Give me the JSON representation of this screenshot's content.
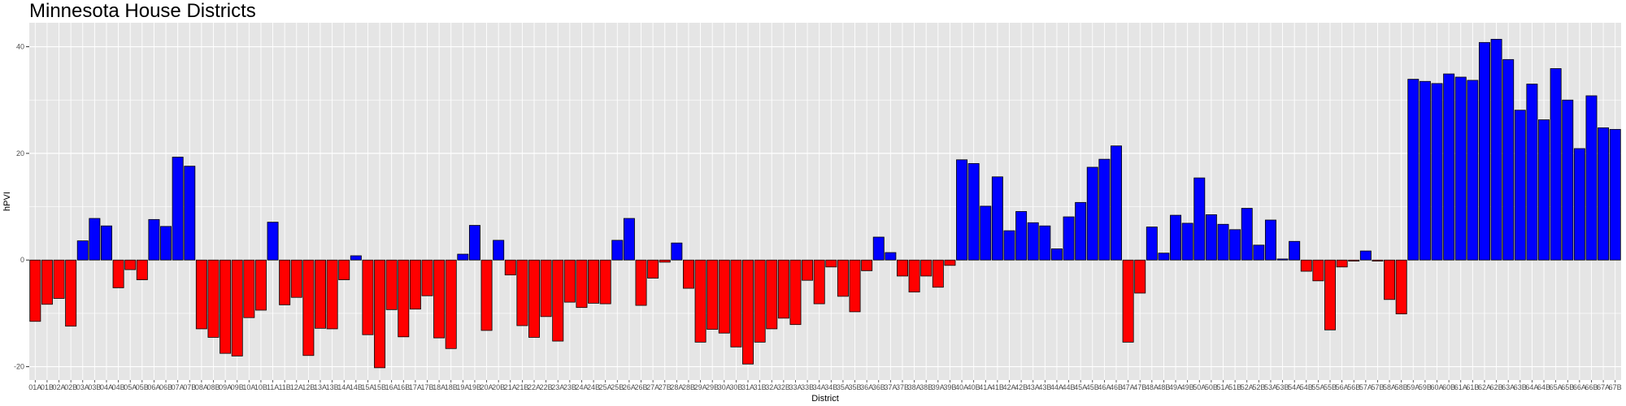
{
  "chart_data": {
    "type": "bar",
    "title": "Minnesota House Districts",
    "xlabel": "District",
    "ylabel": "hPVI",
    "ylim": [
      -22.5,
      44.5
    ],
    "yticks": [
      -20,
      0,
      20,
      40
    ],
    "grid": true,
    "colors": {
      "positive": "#0000ff",
      "negative": "#ff0000",
      "panel": "#e5e5e5",
      "grid": "#ffffff"
    },
    "categories": [
      "01A",
      "01B",
      "02A",
      "02B",
      "03A",
      "03B",
      "04A",
      "04B",
      "05A",
      "05B",
      "06A",
      "06B",
      "07A",
      "07B",
      "08A",
      "08B",
      "09A",
      "09B",
      "10A",
      "10B",
      "11A",
      "11B",
      "12A",
      "12B",
      "13A",
      "13B",
      "14A",
      "14B",
      "15A",
      "15B",
      "16A",
      "16B",
      "17A",
      "17B",
      "18A",
      "18B",
      "19A",
      "19B",
      "20A",
      "20B",
      "21A",
      "21B",
      "22A",
      "22B",
      "23A",
      "23B",
      "24A",
      "24B",
      "25A",
      "25B",
      "26A",
      "26B",
      "27A",
      "27B",
      "28A",
      "28B",
      "29A",
      "29B",
      "30A",
      "30B",
      "31A",
      "31B",
      "32A",
      "32B",
      "33A",
      "33B",
      "34A",
      "34B",
      "35A",
      "35B",
      "36A",
      "36B",
      "37A",
      "37B",
      "38A",
      "38B",
      "39A",
      "39B",
      "40A",
      "40B",
      "41A",
      "41B",
      "42A",
      "42B",
      "43A",
      "43B",
      "44A",
      "44B",
      "45A",
      "45B",
      "46A",
      "46B",
      "47A",
      "47B",
      "48A",
      "48B",
      "49A",
      "49B",
      "50A",
      "50B",
      "51A",
      "51B",
      "52A",
      "52B",
      "53A",
      "53B",
      "54A",
      "54B",
      "55A",
      "55B",
      "56A",
      "56B",
      "57A",
      "57B",
      "58A",
      "58B",
      "59A",
      "59B",
      "60A",
      "60B",
      "61A",
      "61B",
      "62A",
      "62B",
      "63A",
      "63B",
      "64A",
      "64B",
      "65A",
      "65B",
      "66A",
      "66B",
      "67A",
      "67B"
    ],
    "values": [
      -11.5,
      -8.3,
      -7.2,
      -12.4,
      3.6,
      7.8,
      6.4,
      -5.2,
      -1.8,
      -3.7,
      7.6,
      6.3,
      19.3,
      17.6,
      -12.9,
      -14.5,
      -17.5,
      -18.0,
      -10.8,
      -9.4,
      7.1,
      -8.4,
      -7.0,
      -17.9,
      -12.8,
      -12.9,
      -3.7,
      0.8,
      -14.0,
      -20.2,
      -9.3,
      -14.4,
      -9.2,
      -6.7,
      -14.6,
      -16.6,
      1.1,
      6.5,
      -13.2,
      3.7,
      -2.8,
      -12.3,
      -14.5,
      -10.6,
      -15.2,
      -7.9,
      -8.9,
      -8.1,
      -8.2,
      3.7,
      7.8,
      -8.5,
      -3.4,
      -0.4,
      3.2,
      -5.3,
      -15.4,
      -13.0,
      -13.7,
      -16.3,
      -19.5,
      -15.4,
      -12.9,
      -10.9,
      -12.1,
      -3.8,
      -8.2,
      -1.3,
      -6.8,
      -9.7,
      -2.0,
      4.3,
      1.4,
      -3.0,
      -6.0,
      -3.0,
      -5.1,
      -1.0,
      18.8,
      18.1,
      10.1,
      15.6,
      5.5,
      9.1,
      7.0,
      6.4,
      2.1,
      8.1,
      10.8,
      17.4,
      18.9,
      21.4,
      -15.4,
      -6.2,
      6.2,
      1.3,
      8.4,
      6.9,
      15.4,
      8.5,
      6.7,
      5.7,
      9.7,
      2.8,
      7.5,
      0.2,
      3.5,
      -2.1,
      -3.9,
      -13.1,
      -1.3,
      -0.2,
      1.7,
      -0.2,
      -7.4,
      -10.1,
      33.9,
      33.5,
      33.1,
      34.9,
      34.3,
      33.7,
      40.8,
      41.4,
      37.6,
      28.1,
      33.0,
      26.3,
      35.9,
      30.0,
      20.9,
      30.8,
      24.8,
      24.5
    ]
  }
}
